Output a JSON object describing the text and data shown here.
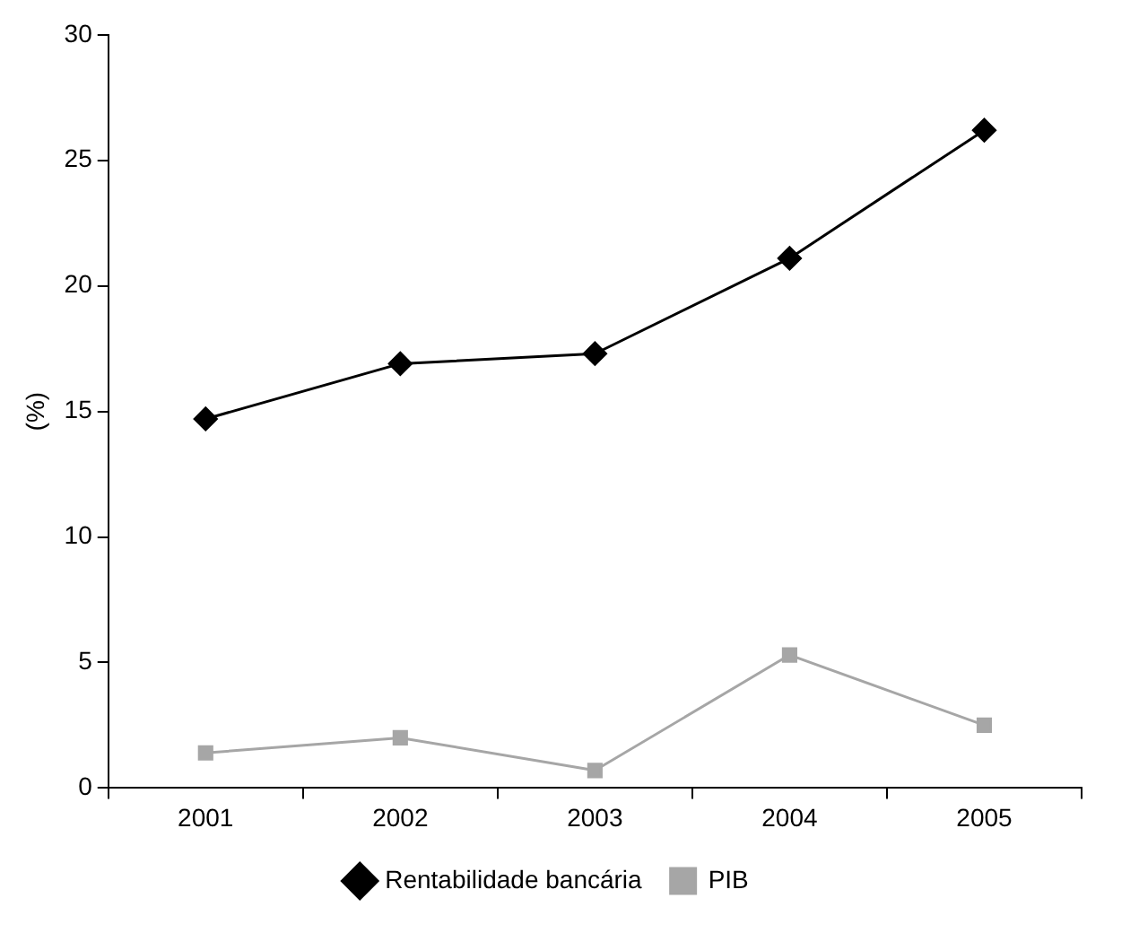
{
  "chart_data": {
    "type": "line",
    "ylabel": "(%)",
    "categories": [
      "2001",
      "2002",
      "2003",
      "2004",
      "2005"
    ],
    "series": [
      {
        "name": "Rentabilidade bancária",
        "color": "#000000",
        "marker": "diamond",
        "values": [
          14.7,
          16.9,
          17.3,
          21.1,
          26.2
        ]
      },
      {
        "name": "PIB",
        "color": "#a6a6a6",
        "marker": "square",
        "values": [
          1.4,
          2.0,
          0.7,
          5.3,
          2.5
        ]
      }
    ],
    "ylim": [
      0,
      30
    ],
    "yticks": [
      0,
      5,
      10,
      15,
      20,
      25,
      30
    ],
    "grid": false,
    "legend": "bottom"
  }
}
